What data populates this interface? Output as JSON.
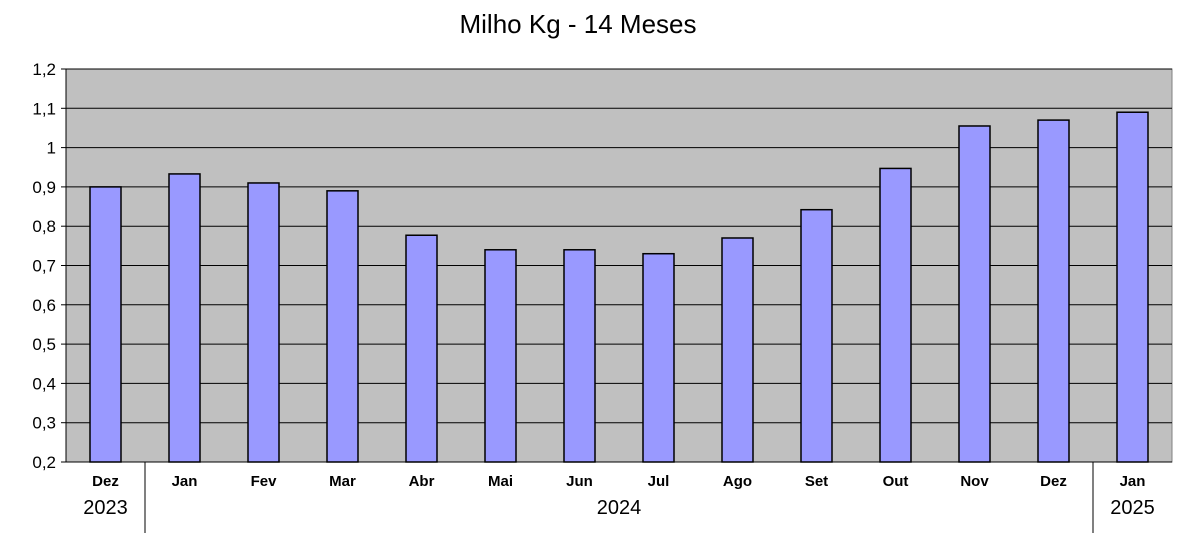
{
  "chart_data": {
    "type": "bar",
    "title": "Milho Kg - 14 Meses",
    "categories": [
      "Dez",
      "Jan",
      "Fev",
      "Mar",
      "Abr",
      "Mai",
      "Jun",
      "Jul",
      "Ago",
      "Set",
      "Out",
      "Nov",
      "Dez",
      "Jan"
    ],
    "values": [
      0.9,
      0.933,
      0.91,
      0.89,
      0.777,
      0.74,
      0.74,
      0.73,
      0.77,
      0.842,
      0.947,
      1.055,
      1.07,
      1.09
    ],
    "year_groups": [
      {
        "label": "2023",
        "span": 1
      },
      {
        "label": "2024",
        "span": 12
      },
      {
        "label": "2025",
        "span": 1
      }
    ],
    "ylim": [
      0.2,
      1.2
    ],
    "yticks": [
      "0,2",
      "0,3",
      "0,4",
      "0,5",
      "0,6",
      "0,7",
      "0,8",
      "0,9",
      "1",
      "1,1",
      "1,2"
    ],
    "grid": true,
    "legend": "none",
    "colors": {
      "bar_fill": "#9999FF",
      "bar_stroke": "#000000",
      "plot_background": "#C0C0C0",
      "grid": "#000000"
    }
  }
}
